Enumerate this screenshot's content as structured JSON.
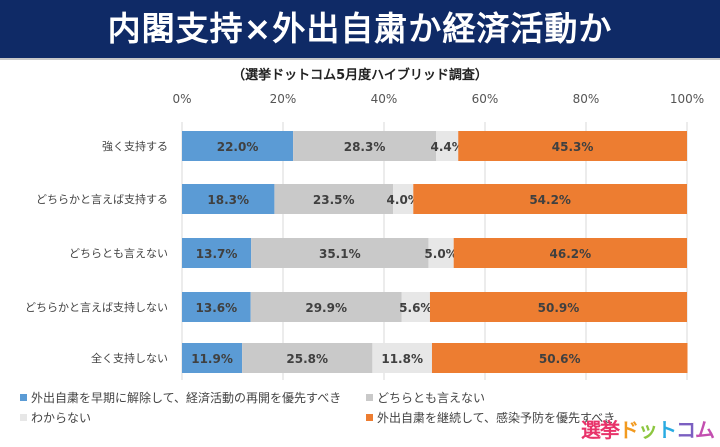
{
  "title": "内閣支持×外出自粛か経済活動か",
  "subtitle": "（選挙ドットコム5月度ハイブリッド調査）",
  "logo": "選挙ドットコム",
  "chart_data": {
    "type": "bar",
    "orientation": "horizontal",
    "stacked": "percent",
    "categories": [
      "強く支持する",
      "どちらかと言えば支持する",
      "どちらとも言えない",
      "どちらかと言えば支持しない",
      "全く支持しない"
    ],
    "series": [
      {
        "name": "外出自粛を早期に解除して、経済活動の再開を優先すべき",
        "color": "#5b9bd5",
        "values": [
          22.0,
          18.3,
          13.7,
          13.6,
          11.9
        ]
      },
      {
        "name": "どちらとも言えない",
        "color": "#c9c9c9",
        "values": [
          28.3,
          23.5,
          35.1,
          29.9,
          25.8
        ]
      },
      {
        "name": "わからない",
        "color": "#e7e7e7",
        "values": [
          4.4,
          4.0,
          5.0,
          5.6,
          11.8
        ]
      },
      {
        "name": "外出自粛を継続して、感染予防を優先すべき",
        "color": "#ed7d31",
        "values": [
          45.3,
          54.2,
          46.2,
          50.9,
          50.6
        ]
      }
    ],
    "xlim": [
      0,
      100
    ],
    "x_ticks": [
      "0%",
      "20%",
      "40%",
      "60%",
      "80%",
      "100%"
    ],
    "data_labels": [
      [
        "22.0%",
        "28.3%",
        "4.4%",
        "45.3%"
      ],
      [
        "18.3%",
        "23.5%",
        "4.0%",
        "54.2%"
      ],
      [
        "13.7%",
        "35.1%",
        "5.0%",
        "46.2%"
      ],
      [
        "13.6%",
        "29.9%",
        "5.6%",
        "50.9%"
      ],
      [
        "11.9%",
        "25.8%",
        "11.8%",
        "50.6%"
      ]
    ],
    "grid": true,
    "legend_position": "bottom"
  }
}
